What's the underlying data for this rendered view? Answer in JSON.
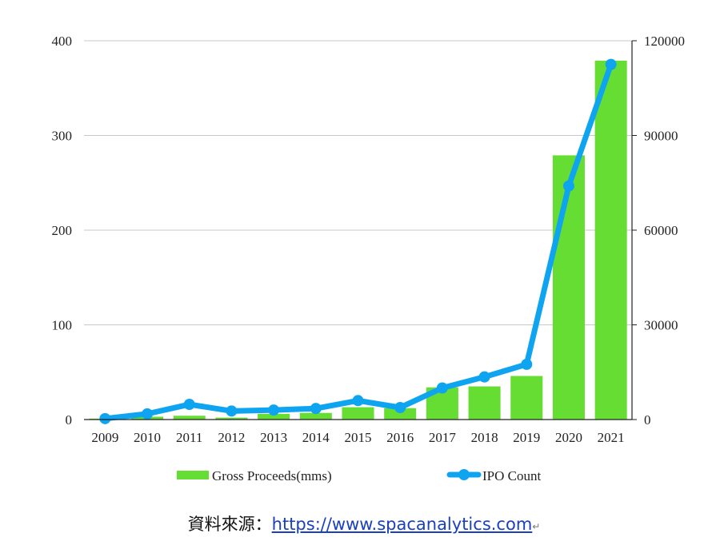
{
  "chart_data": {
    "type": "bar",
    "categories": [
      "2009",
      "2010",
      "2011",
      "2012",
      "2013",
      "2014",
      "2015",
      "2016",
      "2017",
      "2018",
      "2019",
      "2020",
      "2021"
    ],
    "series": [
      {
        "name": "Gross Proceeds(mms)",
        "type": "bar",
        "axis": "left",
        "color": "#66dd33",
        "values": [
          1,
          3,
          4,
          2,
          6,
          7,
          13,
          12,
          34,
          35,
          46,
          279,
          379
        ]
      },
      {
        "name": "IPO Count",
        "type": "line",
        "axis": "right",
        "color": "#0fa4f0",
        "values": [
          300,
          1800,
          4800,
          2700,
          3000,
          3500,
          6000,
          3800,
          10000,
          13500,
          17500,
          74000,
          112500
        ]
      }
    ],
    "yleft_ticks": [
      "0",
      "100",
      "200",
      "300",
      "400"
    ],
    "yright_ticks": [
      "0",
      "30000",
      "60000",
      "90000",
      "120000"
    ],
    "yleft_lim": [
      0,
      400
    ],
    "yright_lim": [
      0,
      120000
    ],
    "grid": true,
    "legend_position": "bottom"
  },
  "source": {
    "label": "資料來源：",
    "url": "https://www.spacanalytics.com",
    "mark": "↵"
  }
}
